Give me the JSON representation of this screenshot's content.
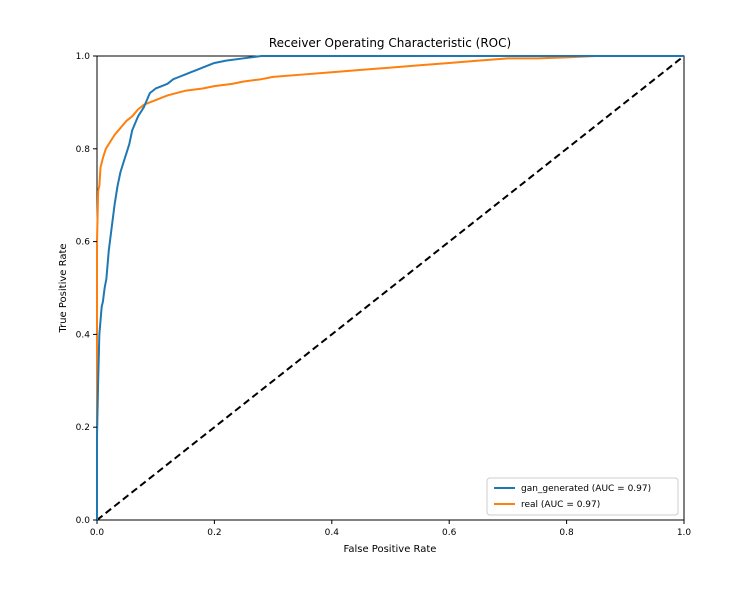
{
  "chart_data": {
    "type": "line",
    "title": "Receiver Operating Characteristic (ROC)",
    "xlabel": "False Positive Rate",
    "ylabel": "True Positive Rate",
    "xlim": [
      0.0,
      1.0
    ],
    "ylim": [
      0.0,
      1.0
    ],
    "xticks": [
      "0.0",
      "0.2",
      "0.4",
      "0.6",
      "0.8",
      "1.0"
    ],
    "yticks": [
      "0.0",
      "0.2",
      "0.4",
      "0.6",
      "0.8",
      "1.0"
    ],
    "grid": false,
    "legend_position": "bottom-right",
    "series": [
      {
        "name": "gan_generated (AUC = 0.97)",
        "color": "#1f77b4",
        "x": [
          0.0,
          0.0,
          0.002,
          0.004,
          0.006,
          0.008,
          0.01,
          0.013,
          0.016,
          0.02,
          0.025,
          0.03,
          0.035,
          0.04,
          0.045,
          0.05,
          0.055,
          0.06,
          0.065,
          0.07,
          0.08,
          0.09,
          0.1,
          0.11,
          0.12,
          0.13,
          0.14,
          0.15,
          0.16,
          0.17,
          0.18,
          0.2,
          0.22,
          0.25,
          0.28,
          0.3,
          0.4,
          0.5,
          0.6,
          0.7,
          0.8,
          0.9,
          1.0
        ],
        "y": [
          0.0,
          0.18,
          0.3,
          0.4,
          0.43,
          0.46,
          0.47,
          0.5,
          0.52,
          0.58,
          0.63,
          0.68,
          0.72,
          0.75,
          0.77,
          0.79,
          0.81,
          0.84,
          0.855,
          0.87,
          0.89,
          0.92,
          0.93,
          0.935,
          0.94,
          0.95,
          0.955,
          0.96,
          0.965,
          0.97,
          0.975,
          0.985,
          0.99,
          0.995,
          1.0,
          1.0,
          1.0,
          1.0,
          1.0,
          1.0,
          1.0,
          1.0,
          1.0
        ]
      },
      {
        "name": "real (AUC = 0.97)",
        "color": "#ff7f0e",
        "x": [
          0.0,
          0.0,
          0.002,
          0.004,
          0.006,
          0.01,
          0.015,
          0.02,
          0.03,
          0.04,
          0.05,
          0.06,
          0.07,
          0.08,
          0.1,
          0.12,
          0.15,
          0.18,
          0.2,
          0.23,
          0.25,
          0.28,
          0.3,
          0.35,
          0.4,
          0.45,
          0.5,
          0.55,
          0.6,
          0.65,
          0.7,
          0.75,
          0.8,
          0.85,
          0.9,
          1.0
        ],
        "y": [
          0.0,
          0.6,
          0.71,
          0.72,
          0.76,
          0.78,
          0.8,
          0.81,
          0.83,
          0.845,
          0.86,
          0.87,
          0.885,
          0.895,
          0.905,
          0.915,
          0.925,
          0.93,
          0.935,
          0.94,
          0.945,
          0.95,
          0.955,
          0.96,
          0.965,
          0.97,
          0.975,
          0.98,
          0.985,
          0.99,
          0.995,
          0.995,
          0.997,
          1.0,
          1.0,
          1.0
        ]
      }
    ],
    "reference_line": {
      "x": [
        0.0,
        1.0
      ],
      "y": [
        0.0,
        1.0
      ],
      "color": "#000000",
      "style": "dashed"
    }
  }
}
